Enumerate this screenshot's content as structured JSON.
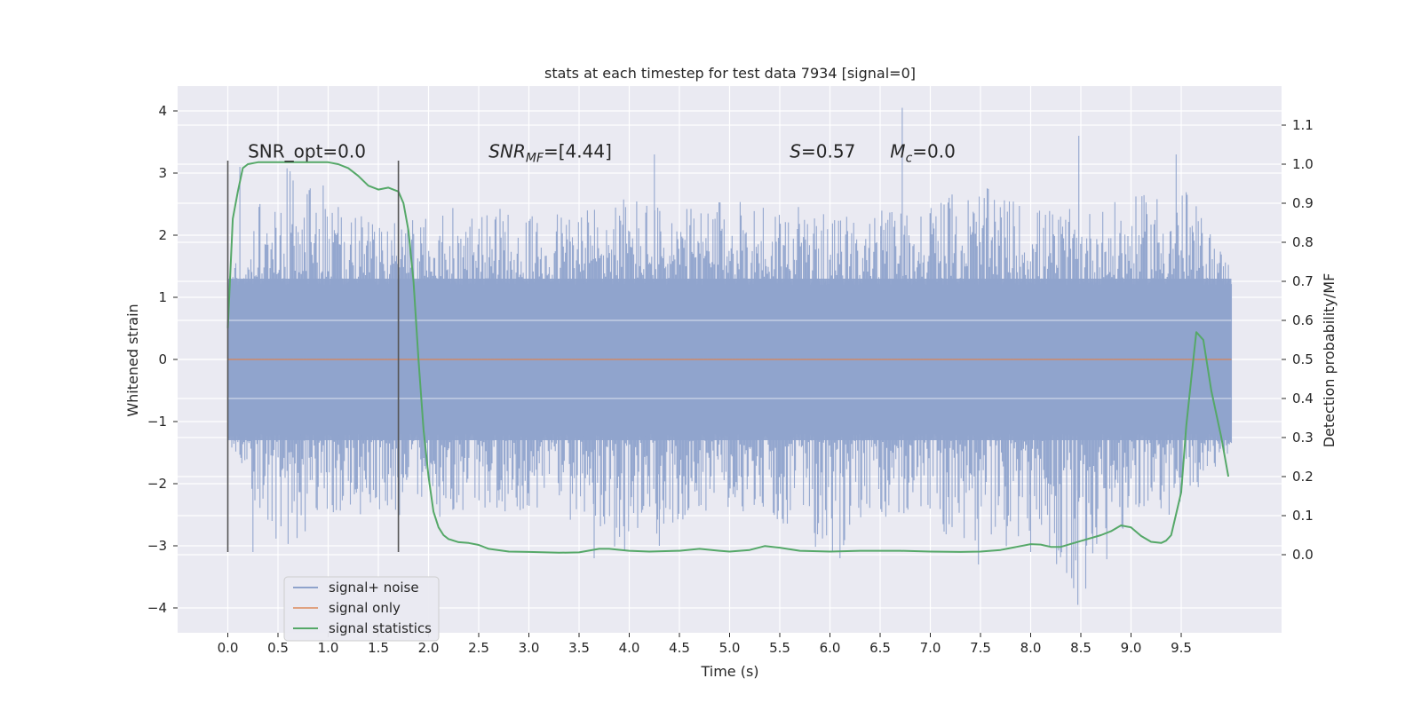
{
  "chart_data": {
    "type": "line",
    "title": "stats at each timestep for test data 7934 [signal=0]",
    "xlabel": "Time (s)",
    "ylabel": "Whitened strain",
    "ylabel_right": "Detection probability/MF",
    "xlim": [
      -0.5,
      10.5
    ],
    "ylim": [
      -4.4,
      4.4
    ],
    "ylim_right": [
      -0.2,
      1.2
    ],
    "x_ticks": [
      "0.0",
      "0.5",
      "1.0",
      "1.5",
      "2.0",
      "2.5",
      "3.0",
      "3.5",
      "4.0",
      "4.5",
      "5.0",
      "5.5",
      "6.0",
      "6.5",
      "7.0",
      "7.5",
      "8.0",
      "8.5",
      "9.0",
      "9.5"
    ],
    "y_ticks": [
      "4",
      "3",
      "2",
      "1",
      "0",
      "−1",
      "−2",
      "−3",
      "−4"
    ],
    "y_ticks_right": [
      "1.1",
      "1.0",
      "0.9",
      "0.8",
      "0.7",
      "0.6",
      "0.5",
      "0.4",
      "0.3",
      "0.2",
      "0.1",
      "0.0"
    ],
    "grid": true,
    "legend_position": "bottom-left",
    "annotations": [
      {
        "text": "SNR_opt=0.0",
        "x": 0.2,
        "y": 3.25
      },
      {
        "text": "SNR",
        "sub": "MF",
        "suffix": "=[4.44]",
        "italic": true,
        "x": 2.6,
        "y": 3.25
      },
      {
        "text": "S",
        "suffix": "=0.57",
        "italic": true,
        "x": 5.6,
        "y": 3.25
      },
      {
        "text": "M",
        "sub": "c",
        "suffix": "=0.0",
        "italic": true,
        "x": 6.6,
        "y": 3.25
      }
    ],
    "vertical_lines": [
      {
        "x": 0.0,
        "y_range": [
          -3.1,
          3.2
        ]
      },
      {
        "x": 1.7,
        "y_range": [
          -3.1,
          3.2
        ]
      }
    ],
    "series": [
      {
        "name": "signal+ noise",
        "color": "#8fa3cc",
        "type": "noise",
        "x_range": [
          0.0,
          10.0
        ],
        "envelope_top": [
          1.3,
          3.2,
          2.6,
          2.2,
          2.3,
          2.6,
          2.3,
          2.5,
          2.7,
          2.4,
          2.6,
          2.6,
          2.3,
          2.4,
          2.6,
          2.8,
          2.5,
          2.4,
          2.6,
          2.9,
          1.5
        ],
        "envelope_bottom": [
          -1.3,
          -3.1,
          -2.6,
          -2.5,
          -2.6,
          -2.4,
          -2.5,
          -2.6,
          -3.2,
          -2.6,
          -2.4,
          -2.6,
          -3.2,
          -2.6,
          -2.6,
          -3.3,
          -2.8,
          -4.0,
          -2.6,
          -2.5,
          -1.5
        ],
        "peaks": [
          [
            0.12,
            3.1
          ],
          [
            0.95,
            2.8
          ],
          [
            4.25,
            3.3
          ],
          [
            4.3,
            -3.0
          ],
          [
            6.72,
            4.05
          ],
          [
            8.48,
            3.6
          ],
          [
            8.47,
            -3.95
          ],
          [
            7.48,
            -3.3
          ],
          [
            3.65,
            -3.2
          ],
          [
            6.1,
            -3.2
          ],
          [
            9.45,
            3.3
          ],
          [
            0.25,
            -3.1
          ],
          [
            8.0,
            -3.1
          ]
        ]
      },
      {
        "name": "signal only",
        "color": "#dd8452",
        "x": [
          0.0,
          10.0
        ],
        "y": [
          0.0,
          0.0
        ]
      },
      {
        "name": "signal statistics",
        "color": "#55a868",
        "axis": "right",
        "x": [
          0.0,
          0.05,
          0.1,
          0.15,
          0.2,
          0.3,
          0.4,
          0.5,
          0.6,
          0.8,
          1.0,
          1.1,
          1.2,
          1.3,
          1.4,
          1.5,
          1.6,
          1.7,
          1.75,
          1.8,
          1.85,
          1.9,
          1.95,
          2.0,
          2.05,
          2.1,
          2.15,
          2.2,
          2.3,
          2.4,
          2.5,
          2.6,
          2.8,
          3.0,
          3.3,
          3.5,
          3.7,
          3.8,
          4.0,
          4.2,
          4.5,
          4.7,
          4.9,
          5.0,
          5.2,
          5.35,
          5.5,
          5.7,
          6.0,
          6.3,
          6.5,
          6.7,
          7.0,
          7.3,
          7.5,
          7.7,
          7.9,
          8.0,
          8.1,
          8.2,
          8.3,
          8.5,
          8.7,
          8.8,
          8.9,
          9.0,
          9.1,
          9.2,
          9.3,
          9.35,
          9.4,
          9.5,
          9.55,
          9.6,
          9.65,
          9.72,
          9.8,
          9.9,
          9.97
        ],
        "y": [
          0.58,
          0.86,
          0.93,
          0.99,
          1.0,
          1.005,
          1.005,
          1.005,
          1.005,
          1.005,
          1.005,
          1.0,
          0.99,
          0.97,
          0.945,
          0.935,
          0.94,
          0.93,
          0.9,
          0.83,
          0.7,
          0.5,
          0.32,
          0.2,
          0.11,
          0.07,
          0.05,
          0.04,
          0.032,
          0.03,
          0.025,
          0.015,
          0.008,
          0.007,
          0.005,
          0.006,
          0.015,
          0.015,
          0.01,
          0.008,
          0.01,
          0.015,
          0.01,
          0.008,
          0.012,
          0.022,
          0.018,
          0.01,
          0.008,
          0.01,
          0.01,
          0.01,
          0.008,
          0.007,
          0.008,
          0.012,
          0.022,
          0.027,
          0.026,
          0.02,
          0.02,
          0.035,
          0.05,
          0.06,
          0.075,
          0.07,
          0.048,
          0.033,
          0.03,
          0.036,
          0.05,
          0.16,
          0.33,
          0.45,
          0.57,
          0.55,
          0.42,
          0.3,
          0.2
        ]
      }
    ]
  }
}
